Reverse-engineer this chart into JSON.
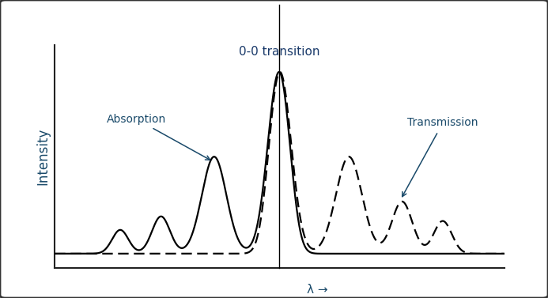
{
  "title": "0-0 transition",
  "xlabel": "λ →",
  "ylabel": "Intensity",
  "absorption_label": "Absorption",
  "transmission_label": "Transmission",
  "background_color": "#ffffff",
  "border_color": "#1a1a1a",
  "label_color": "#1a4a6a",
  "curve_color": "#000000",
  "title_color": "#1a3a6a",
  "axis_color": "#222222",
  "vline_x": 0.0,
  "xlim": [
    -5.5,
    5.5
  ],
  "ylim": [
    -0.08,
    1.15
  ]
}
